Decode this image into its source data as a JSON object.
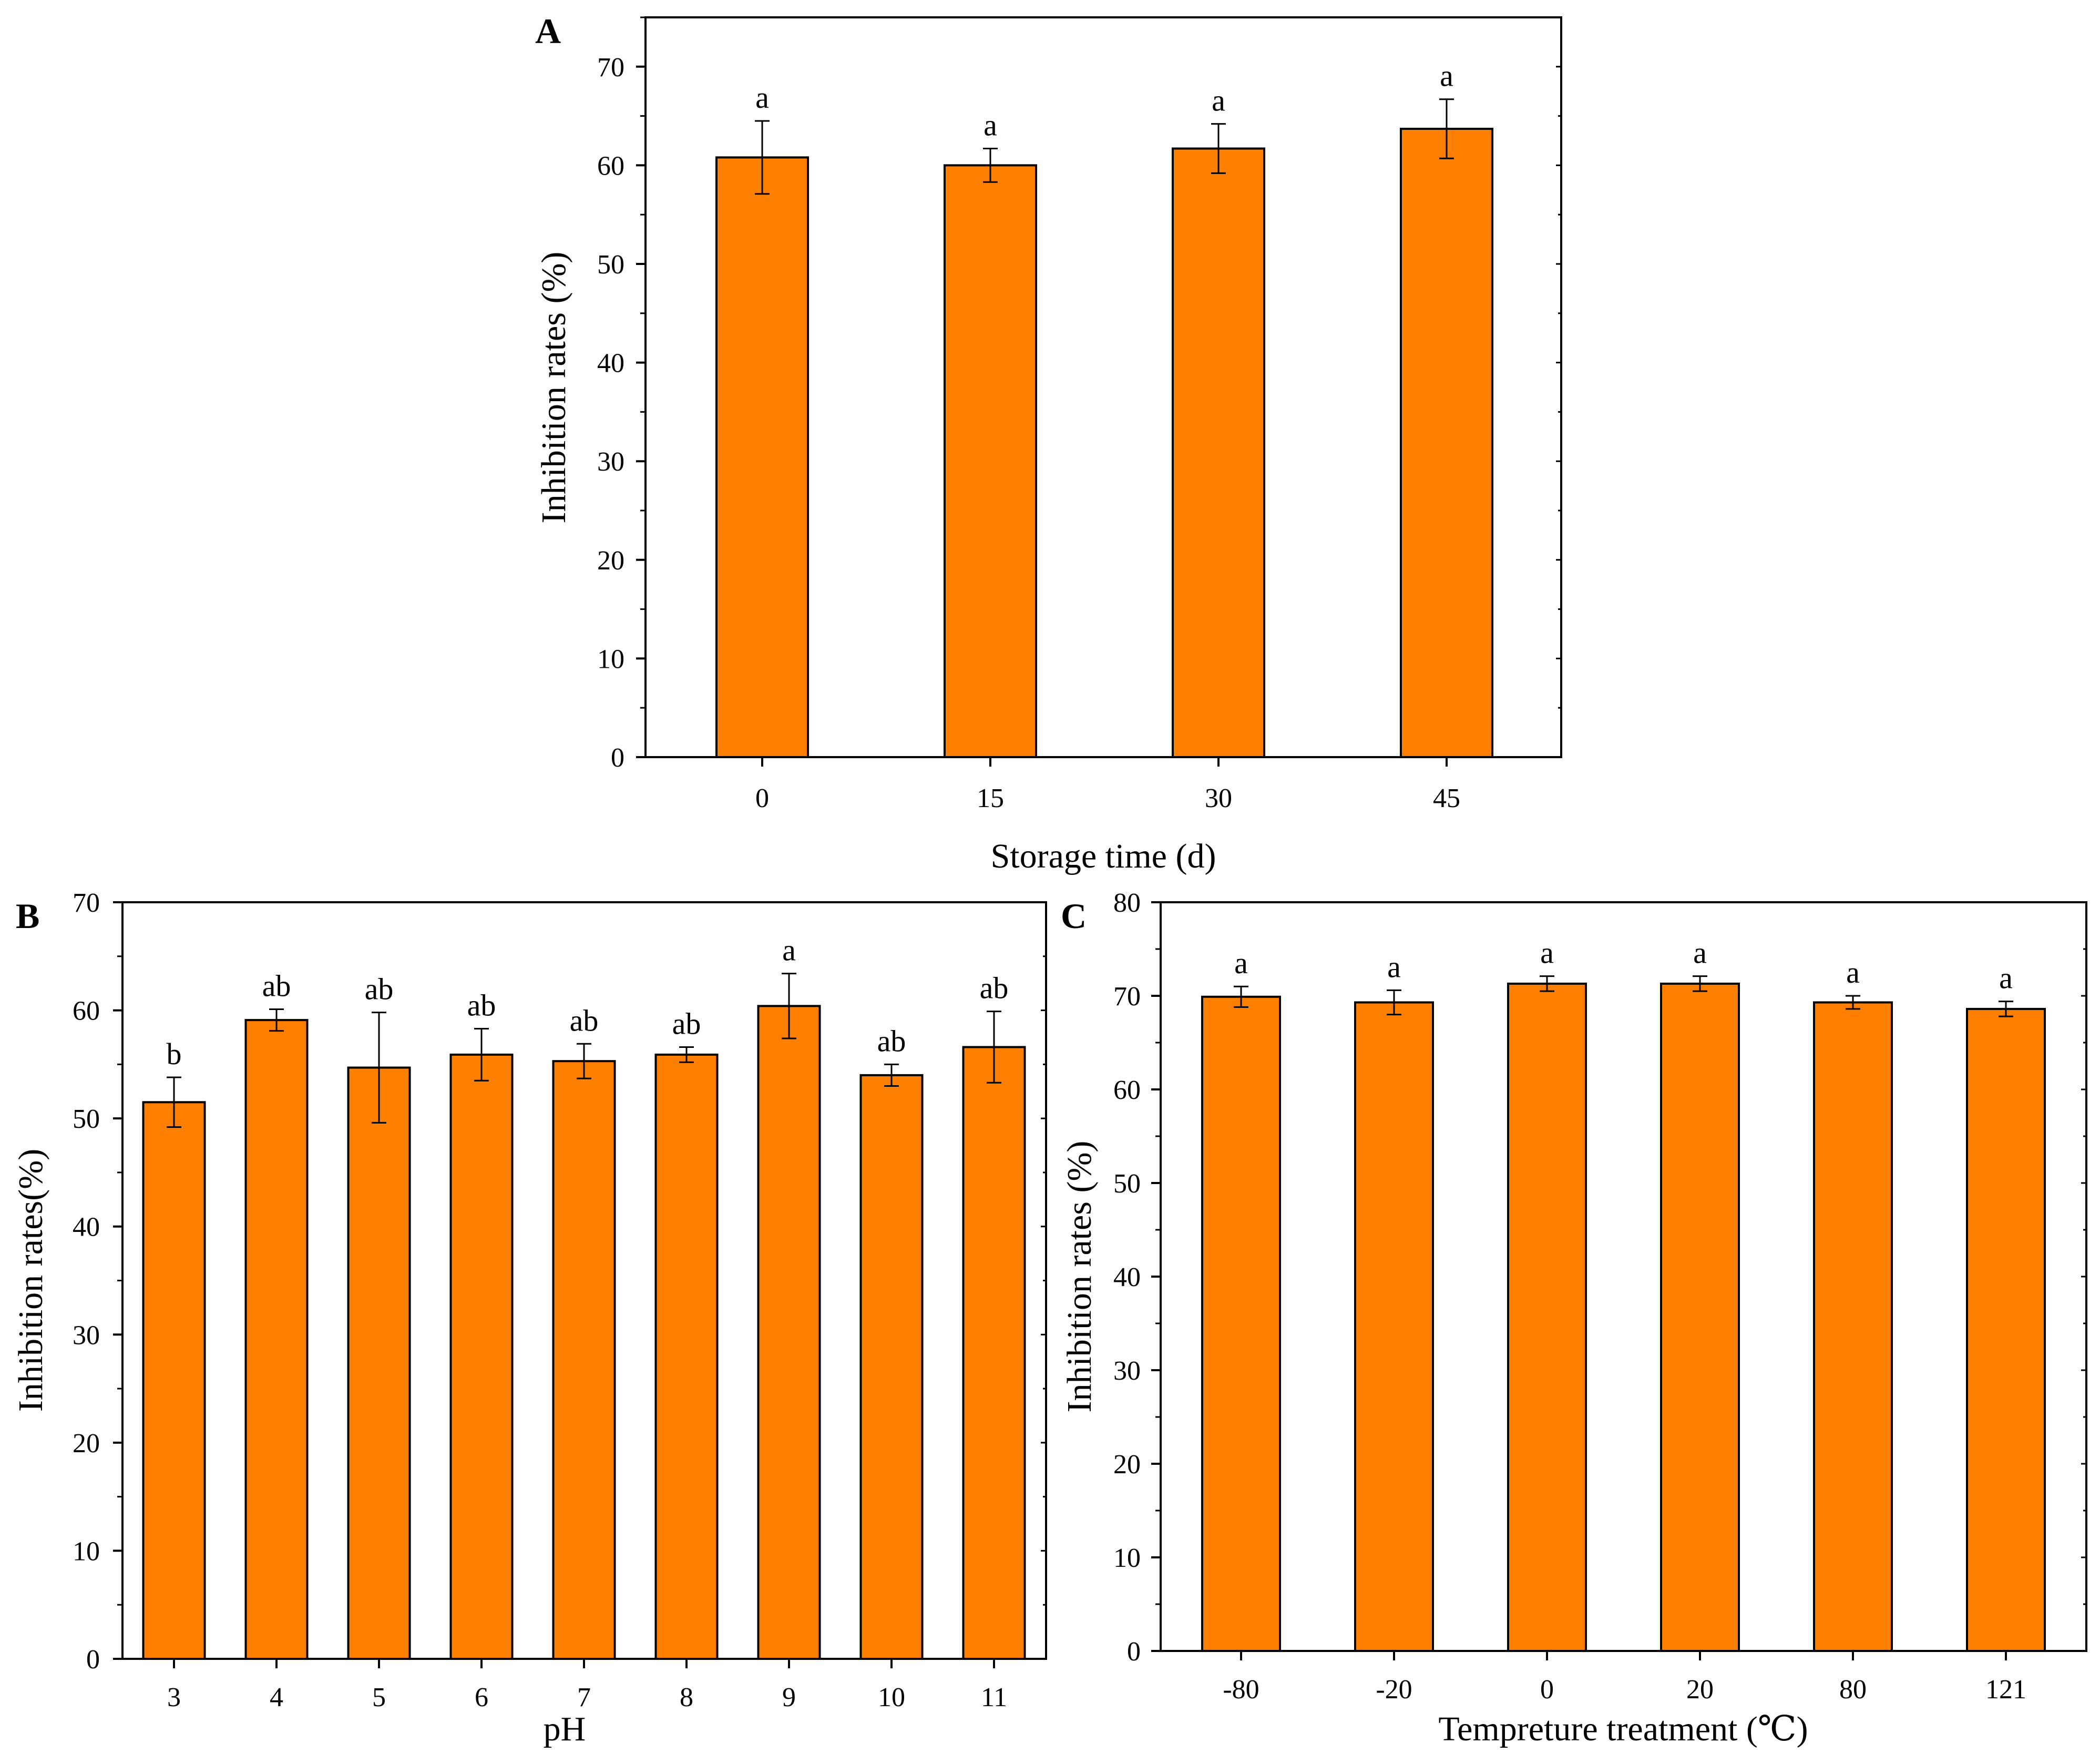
{
  "colors": {
    "bar": "#ff8000",
    "bar_edge": "#000000",
    "axis": "#000000",
    "error": "#000000"
  },
  "chart_data": [
    {
      "panel": "A",
      "type": "bar",
      "xlabel": "Storage time (d)",
      "ylabel": "Inhibition rates (%)",
      "categories": [
        "0",
        "15",
        "30",
        "45"
      ],
      "values": [
        60.8,
        60.0,
        61.7,
        63.7
      ],
      "errors": [
        3.7,
        1.7,
        2.5,
        3.0
      ],
      "significance": [
        "a",
        "a",
        "a",
        "a"
      ],
      "ylim": [
        0,
        75
      ],
      "yticks": [
        0,
        10,
        20,
        30,
        40,
        50,
        60,
        70
      ],
      "ytick_labels": [
        "0",
        "10",
        "20",
        "30",
        "40",
        "50",
        "60",
        "70"
      ]
    },
    {
      "panel": "B",
      "type": "bar",
      "xlabel": "pH",
      "ylabel": "Inhibition rates(%)",
      "categories": [
        "3",
        "4",
        "5",
        "6",
        "7",
        "8",
        "9",
        "10",
        "11"
      ],
      "values": [
        51.5,
        59.1,
        54.7,
        55.9,
        55.3,
        55.9,
        60.4,
        54.0,
        56.6
      ],
      "errors": [
        2.3,
        1.0,
        5.1,
        2.4,
        1.6,
        0.7,
        3.0,
        1.0,
        3.3
      ],
      "significance": [
        "b",
        "ab",
        "ab",
        "ab",
        "ab",
        "ab",
        "a",
        "ab",
        "ab"
      ],
      "ylim": [
        0,
        70
      ],
      "yticks": [
        0,
        10,
        20,
        30,
        40,
        50,
        60,
        70
      ],
      "ytick_labels": [
        "0",
        "10",
        "20",
        "30",
        "40",
        "50",
        "60",
        "70"
      ]
    },
    {
      "panel": "C",
      "type": "bar",
      "xlabel": "Tempreture treatment (℃)",
      "ylabel": "Inhibition rates (%)",
      "categories": [
        "-80",
        "-20",
        "0",
        "20",
        "80",
        "121"
      ],
      "values": [
        69.9,
        69.3,
        71.3,
        71.3,
        69.3,
        68.6
      ],
      "errors": [
        1.1,
        1.3,
        0.8,
        0.8,
        0.7,
        0.8
      ],
      "significance": [
        "a",
        "a",
        "a",
        "a",
        "a",
        "a"
      ],
      "ylim": [
        0,
        80
      ],
      "yticks": [
        0,
        10,
        20,
        30,
        40,
        50,
        60,
        70,
        80
      ],
      "ytick_labels": [
        "0",
        "10",
        "20",
        "30",
        "40",
        "50",
        "60",
        "70",
        "80"
      ]
    }
  ]
}
